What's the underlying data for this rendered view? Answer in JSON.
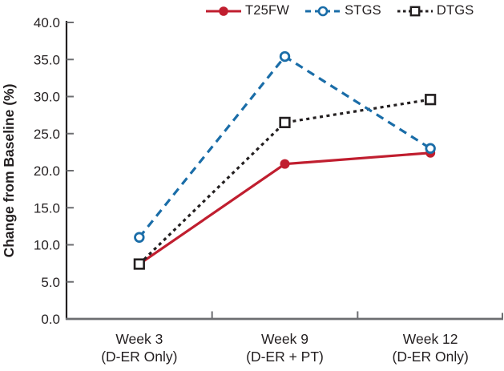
{
  "chart_data": {
    "type": "line",
    "title": "",
    "xlabel": "",
    "ylabel": "Change from Baseline (%)",
    "ylim": [
      0,
      40
    ],
    "ytick_step": 5,
    "ytick_labels": [
      "0.0",
      "5.0",
      "10.0",
      "15.0",
      "20.0",
      "25.0",
      "30.0",
      "35.0",
      "40.0"
    ],
    "categories": [
      {
        "label": "Week 3",
        "sublabel": "(D-ER Only)"
      },
      {
        "label": "Week 9",
        "sublabel": "(D-ER + PT)"
      },
      {
        "label": "Week 12",
        "sublabel": "(D-ER Only)"
      }
    ],
    "series": [
      {
        "name": "T25FW",
        "color": "#c01e2f",
        "line_style": "solid",
        "marker": "filled-circle",
        "values": [
          7.4,
          20.9,
          22.4
        ]
      },
      {
        "name": "STGS",
        "color": "#1a6da8",
        "line_style": "dashed",
        "marker": "open-circle",
        "values": [
          11.0,
          35.4,
          23.0
        ]
      },
      {
        "name": "DTGS",
        "color": "#231f20",
        "line_style": "dotted",
        "marker": "open-square",
        "values": [
          7.4,
          26.5,
          29.6
        ]
      }
    ],
    "legend_position": "top",
    "grid": false,
    "axis_colors": {
      "y_spine": "#231f20",
      "x_spine": "#6d6e71",
      "ticks": "#6d6e71",
      "text": "#231f20"
    }
  }
}
